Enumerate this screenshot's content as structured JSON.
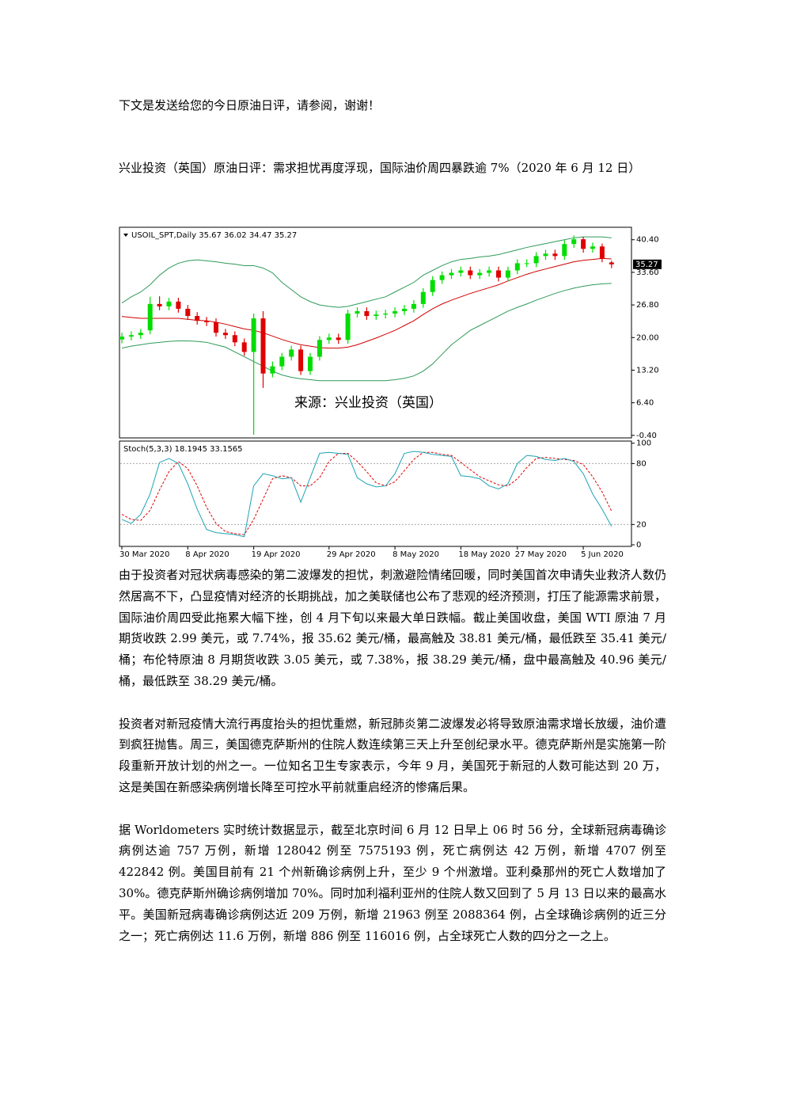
{
  "intro": "下文是发送给您的今日原油日评，请参阅，谢谢！",
  "title": "兴业投资（英国）原油日评：需求担忧再度浮现，国际油价周四暴跌逾 7%（2020 年 6 月 12 日）",
  "chart_data": {
    "type": "candlestick",
    "header": "USOIL_SPT,Daily  35.67 36.02 34.47 35.27",
    "source_label": "来源：兴业投资（英国）",
    "categories": [
      "30 Mar 2020",
      null,
      null,
      null,
      null,
      null,
      null,
      "8 Apr 2020",
      null,
      null,
      null,
      null,
      null,
      null,
      "19 Apr 2020",
      null,
      null,
      null,
      null,
      null,
      null,
      null,
      "29 Apr 2020",
      null,
      null,
      null,
      null,
      null,
      null,
      "8 May 2020",
      null,
      null,
      null,
      null,
      null,
      null,
      "18 May 2020",
      null,
      null,
      null,
      null,
      null,
      "27 May 2020",
      null,
      null,
      null,
      null,
      null,
      null,
      "5 Jun 2020",
      null,
      null,
      null
    ],
    "open": [
      19.6,
      20.2,
      20.5,
      21.5,
      27.0,
      26.5,
      27.5,
      26.0,
      24.5,
      23.5,
      23.2,
      21.0,
      20.5,
      19.0,
      17.0,
      24.0,
      12.5,
      14.0,
      16.0,
      17.5,
      13.0,
      16.0,
      19.5,
      20.0,
      19.5,
      25.0,
      25.5,
      24.5,
      24.8,
      25.0,
      25.5,
      26.0,
      27.0,
      29.5,
      32.0,
      33.0,
      33.5,
      34.0,
      33.0,
      33.5,
      34.0,
      32.5,
      34.0,
      35.5,
      35.5,
      37.0,
      37.5,
      37.0,
      39.5,
      40.5,
      38.5,
      39.0,
      35.67
    ],
    "high": [
      21.0,
      21.3,
      21.8,
      28.5,
      28.6,
      28.3,
      28.3,
      26.8,
      25.3,
      24.3,
      24.0,
      21.8,
      21.3,
      19.8,
      25.0,
      25.5,
      15.0,
      16.8,
      18.3,
      18.3,
      16.8,
      20.3,
      20.8,
      20.8,
      25.8,
      26.3,
      26.3,
      25.6,
      25.8,
      26.3,
      26.8,
      27.8,
      30.3,
      32.8,
      33.8,
      34.3,
      34.8,
      34.8,
      34.3,
      34.8,
      34.8,
      34.8,
      36.3,
      36.3,
      37.8,
      38.3,
      38.3,
      40.3,
      41.3,
      41.0,
      39.8,
      39.6,
      36.02
    ],
    "low": [
      18.8,
      19.4,
      19.7,
      20.7,
      25.7,
      25.7,
      25.2,
      23.7,
      22.7,
      22.4,
      20.2,
      19.7,
      18.2,
      16.2,
      -0.3,
      9.5,
      11.7,
      13.2,
      15.2,
      12.2,
      12.2,
      15.2,
      18.7,
      18.7,
      18.7,
      24.2,
      23.7,
      23.7,
      24.0,
      24.2,
      24.7,
      25.2,
      26.2,
      28.7,
      31.2,
      32.2,
      32.7,
      32.2,
      32.2,
      32.7,
      31.7,
      31.7,
      33.2,
      34.7,
      34.7,
      36.2,
      36.2,
      36.2,
      38.7,
      37.7,
      37.7,
      35.7,
      34.47
    ],
    "close": [
      20.2,
      20.5,
      21.0,
      27.0,
      26.5,
      27.5,
      26.0,
      24.5,
      23.5,
      23.2,
      21.0,
      20.5,
      19.0,
      17.0,
      24.0,
      12.5,
      14.0,
      16.0,
      17.5,
      13.0,
      16.0,
      19.5,
      20.0,
      19.5,
      25.0,
      25.5,
      24.5,
      24.8,
      25.0,
      25.5,
      26.0,
      27.0,
      29.5,
      32.0,
      33.0,
      33.5,
      34.0,
      33.0,
      33.5,
      34.0,
      32.5,
      34.0,
      35.5,
      35.5,
      37.0,
      37.5,
      37.0,
      39.5,
      40.5,
      38.5,
      39.0,
      36.5,
      35.27
    ],
    "up_color": "#00dd00",
    "down_color": "#e00000",
    "bands": [
      {
        "color": "#2f9a5a",
        "values": [
          27.2,
          28.5,
          29.5,
          31.0,
          33.0,
          34.5,
          35.5,
          36.0,
          36.2,
          36.0,
          35.8,
          35.5,
          35.3,
          35.0,
          35.0,
          34.5,
          33.5,
          31.5,
          30.0,
          28.5,
          27.5,
          26.8,
          26.5,
          26.3,
          26.5,
          27.0,
          27.5,
          28.0,
          28.5,
          29.5,
          30.5,
          31.5,
          33.0,
          34.0,
          35.0,
          35.8,
          36.3,
          36.5,
          36.8,
          37.0,
          37.3,
          37.8,
          38.3,
          38.8,
          39.2,
          39.6,
          40.0,
          40.4,
          40.8,
          41.0,
          41.0,
          41.0,
          40.8
        ]
      },
      {
        "color": "#d00000",
        "values": [
          24.4,
          24.2,
          24.0,
          24.0,
          24.0,
          24.0,
          24.0,
          23.8,
          23.6,
          23.5,
          23.2,
          22.8,
          22.3,
          21.8,
          21.5,
          21.0,
          20.3,
          19.6,
          19.0,
          18.5,
          18.2,
          17.9,
          17.8,
          17.8,
          18.0,
          18.5,
          19.2,
          19.9,
          20.7,
          21.5,
          22.5,
          23.5,
          24.8,
          26.0,
          27.0,
          27.8,
          28.5,
          29.2,
          29.8,
          30.4,
          31.0,
          31.8,
          32.5,
          33.2,
          33.8,
          34.3,
          34.8,
          35.3,
          35.8,
          36.1,
          36.3,
          36.5,
          36.4
        ]
      },
      {
        "color": "#2f9a5a",
        "values": [
          17.8,
          18.2,
          18.5,
          18.8,
          19.0,
          19.2,
          19.3,
          19.3,
          19.2,
          19.0,
          18.5,
          18.0,
          17.0,
          16.0,
          15.0,
          14.0,
          13.0,
          12.2,
          11.7,
          11.4,
          11.2,
          11.0,
          11.0,
          11.0,
          11.0,
          11.0,
          11.0,
          11.0,
          11.0,
          11.2,
          11.5,
          12.0,
          13.0,
          14.5,
          16.5,
          18.5,
          20.0,
          21.5,
          22.5,
          23.5,
          24.5,
          25.5,
          26.3,
          27.0,
          27.8,
          28.5,
          29.2,
          29.8,
          30.3,
          30.7,
          31.0,
          31.2,
          31.3
        ]
      }
    ],
    "last_price": 35.27,
    "ylim": [
      -0.93,
      43.0
    ],
    "yticks": [
      {
        "value": 40.4,
        "label": "40.40"
      },
      {
        "value": 33.6,
        "label": "33.60"
      },
      {
        "value": 26.8,
        "label": "26.80"
      },
      {
        "value": 20,
        "label": "20.00"
      },
      {
        "value": 13.2,
        "label": "13.20"
      },
      {
        "value": 6.4,
        "label": "6.40"
      },
      {
        "value": -0.4,
        "label": "-0.40"
      }
    ],
    "stochastic": {
      "header": "Stoch(5,3,3) 18.1945 33.1565",
      "ylim": [
        -1.56,
        102.1
      ],
      "yticks": [
        100,
        80,
        20,
        0
      ],
      "levels": [
        80,
        20
      ],
      "k": {
        "color": "#1fa3b5",
        "values": [
          25,
          21,
          30,
          50,
          81,
          85,
          80,
          60,
          35,
          15,
          12,
          11,
          10,
          8,
          58,
          70,
          68,
          65,
          66,
          42,
          66,
          90,
          91,
          90,
          89,
          66,
          60,
          57,
          58,
          70,
          90,
          92,
          91,
          89,
          88,
          87,
          68,
          67,
          65,
          58,
          55,
          60,
          80,
          88,
          87,
          84,
          83,
          85,
          82,
          70,
          50,
          35,
          18.1945
        ]
      },
      "d": {
        "color": "#e00000",
        "values": [
          30,
          25,
          24,
          34,
          54,
          72,
          82,
          75,
          58,
          37,
          21,
          13,
          11,
          10,
          25,
          45,
          65,
          68,
          66,
          58,
          58,
          66,
          82,
          90,
          90,
          82,
          72,
          61,
          58,
          62,
          73,
          84,
          91,
          91,
          89,
          88,
          81,
          74,
          67,
          63,
          59,
          58,
          65,
          76,
          85,
          86,
          85,
          84,
          83,
          79,
          67,
          52,
          33.1565
        ]
      }
    }
  },
  "paragraphs": [
    "由于投资者对冠状病毒感染的第二波爆发的担忧，刺激避险情绪回暖，同时美国首次申请失业救济人数仍然居高不下，凸显疫情对经济的长期挑战，加之美联储也公布了悲观的经济预测，打压了能源需求前景，国际油价周四受此拖累大幅下挫，创 4 月下旬以来最大单日跌幅。截止美国收盘，美国 WTI 原油 7 月期货收跌 2.99 美元，或 7.74%，报 35.62 美元/桶，最高触及 38.81 美元/桶，最低跌至 35.41 美元/桶；布伦特原油 8 月期货收跌 3.05 美元，或 7.38%，报 38.29 美元/桶，盘中最高触及 40.96 美元/桶，最低跌至 38.29 美元/桶。",
    "投资者对新冠疫情大流行再度抬头的担忧重燃，新冠肺炎第二波爆发必将导致原油需求增长放缓，油价遭到疯狂抛售。周三，美国德克萨斯州的住院人数连续第三天上升至创纪录水平。德克萨斯州是实施第一阶段重新开放计划的州之一。一位知名卫生专家表示，今年 9 月，美国死于新冠的人数可能达到 20 万，这是美国在新感染病例增长降至可控水平前就重启经济的惨痛后果。",
    "据 Worldometers 实时统计数据显示，截至北京时间 6 月 12 日早上 06 时 56 分，全球新冠病毒确诊病例达逾 757 万例，新增 128042 例至 7575193 例，死亡病例达 42 万例，新增 4707 例至 422842 例。美国目前有 21 个州新确诊病例上升，至少 9 个州激增。亚利桑那州的死亡人数增加了 30%。德克萨斯州确诊病例增加 70%。同时加利福利亚州的住院人数又回到了 5 月 13 日以来的最高水平。美国新冠病毒确诊病例达近 209 万例，新增 21963 例至 2088364 例，占全球确诊病例的近三分之一；死亡病例达 11.6 万例，新增 886 例至 116016 例，占全球死亡人数的四分之一之上。"
  ]
}
